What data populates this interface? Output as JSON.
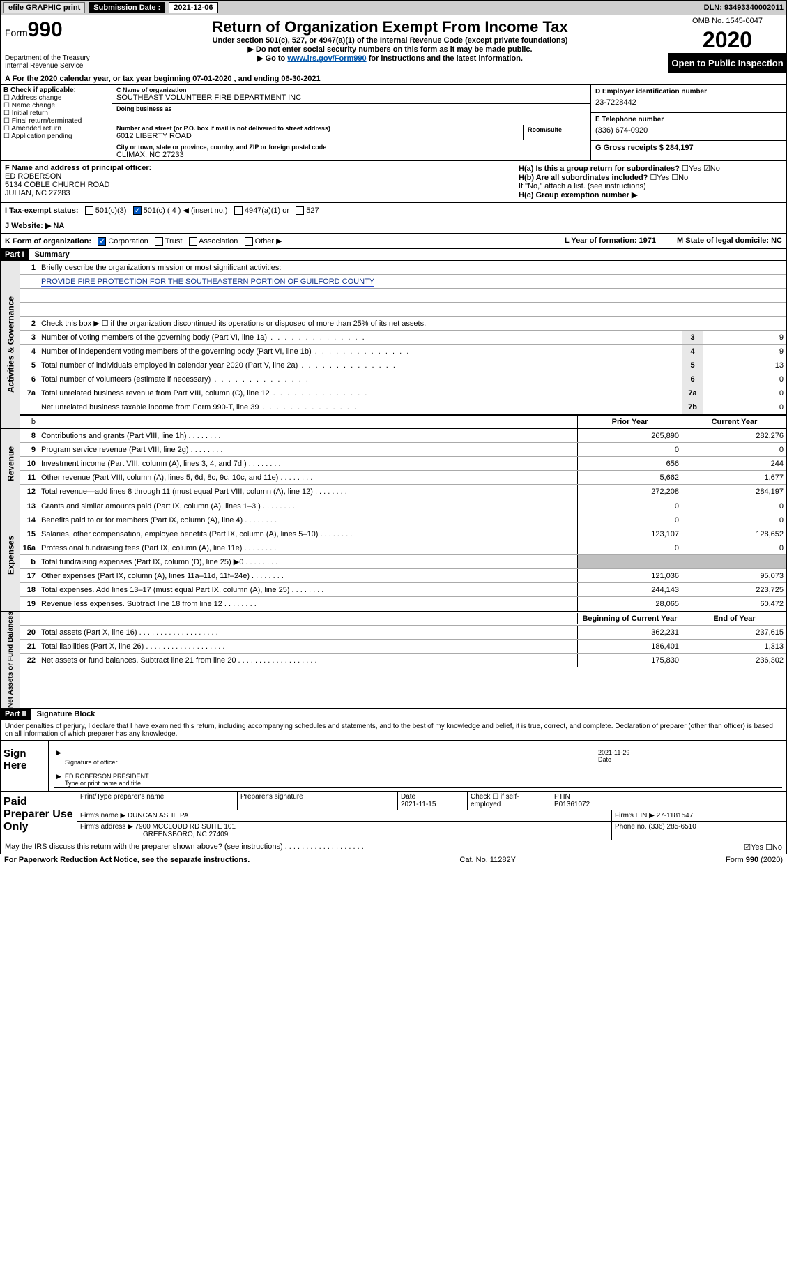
{
  "topbar": {
    "efile": "efile GRAPHIC print",
    "subLabel": "Submission Date :",
    "subDate": "2021-12-06",
    "dln": "DLN: 93493340002011"
  },
  "header": {
    "formWord": "Form",
    "form990": "990",
    "dept": "Department of the Treasury\nInternal Revenue Service",
    "title": "Return of Organization Exempt From Income Tax",
    "sub1": "Under section 501(c), 527, or 4947(a)(1) of the Internal Revenue Code (except private foundations)",
    "sub2": "▶ Do not enter social security numbers on this form as it may be made public.",
    "sub3a": "▶ Go to ",
    "sub3link": "www.irs.gov/Form990",
    "sub3b": " for instructions and the latest information.",
    "omb": "OMB No. 1545-0047",
    "year": "2020",
    "open": "Open to Public Inspection"
  },
  "rowA": "A For the 2020 calendar year, or tax year beginning 07-01-2020    , and ending 06-30-2021",
  "colB": {
    "h": "B Check if applicable:",
    "items": [
      "Address change",
      "Name change",
      "Initial return",
      "Final return/terminated",
      "Amended return",
      "Application pending"
    ]
  },
  "colC": {
    "nameLbl": "C Name of organization",
    "name": "SOUTHEAST VOLUNTEER FIRE DEPARTMENT INC",
    "dbaLbl": "Doing business as",
    "streetLbl": "Number and street (or P.O. box if mail is not delivered to street address)",
    "street": "6012 LIBERTY ROAD",
    "roomLbl": "Room/suite",
    "cityLbl": "City or town, state or province, country, and ZIP or foreign postal code",
    "city": "CLIMAX, NC  27233"
  },
  "colD": {
    "einLbl": "D Employer identification number",
    "ein": "23-7228442",
    "telLbl": "E Telephone number",
    "tel": "(336) 674-0920",
    "grossLbl": "G Gross receipts $ ",
    "gross": "284,197"
  },
  "rowF": {
    "lbl": "F Name and address of principal officer:",
    "name": "ED ROBERSON",
    "addr1": "5134 COBLE CHURCH ROAD",
    "addr2": "JULIAN, NC  27283"
  },
  "rowH": {
    "a": "H(a) Is this a group return for subordinates?",
    "b": "H(b) Are all subordinates included?",
    "bNote": "If \"No,\" attach a list. (see instructions)",
    "c": "H(c) Group exemption number ▶"
  },
  "rowI": {
    "lbl": "I   Tax-exempt status:",
    "o1": "501(c)(3)",
    "o2": "501(c) ( 4 ) ◀ (insert no.)",
    "o3": "4947(a)(1) or",
    "o4": "527"
  },
  "rowJ": "J   Website: ▶ NA",
  "rowK": {
    "lbl": "K Form of organization:",
    "o1": "Corporation",
    "o2": "Trust",
    "o3": "Association",
    "o4": "Other ▶",
    "year": "L Year of formation: 1971",
    "state": "M State of legal domicile: NC"
  },
  "partI": {
    "hdr": "Part I",
    "title": "Summary"
  },
  "activities": {
    "label": "Activities & Governance",
    "l1": "Briefly describe the organization's mission or most significant activities:",
    "l1v": "PROVIDE FIRE PROTECTION FOR THE SOUTHEASTERN PORTION OF GUILFORD COUNTY",
    "l2": "Check this box ▶ ☐  if the organization discontinued its operations or disposed of more than 25% of its net assets.",
    "rows": [
      {
        "n": "3",
        "d": "Number of voting members of the governing body (Part VI, line 1a)",
        "b": "3",
        "v": "9"
      },
      {
        "n": "4",
        "d": "Number of independent voting members of the governing body (Part VI, line 1b)",
        "b": "4",
        "v": "9"
      },
      {
        "n": "5",
        "d": "Total number of individuals employed in calendar year 2020 (Part V, line 2a)",
        "b": "5",
        "v": "13"
      },
      {
        "n": "6",
        "d": "Total number of volunteers (estimate if necessary)",
        "b": "6",
        "v": "0"
      },
      {
        "n": "7a",
        "d": "Total unrelated business revenue from Part VIII, column (C), line 12",
        "b": "7a",
        "v": "0"
      },
      {
        "n": "",
        "d": "Net unrelated business taxable income from Form 990-T, line 39",
        "b": "7b",
        "v": "0"
      }
    ]
  },
  "revenue": {
    "label": "Revenue",
    "hdr1": "Prior Year",
    "hdr2": "Current Year",
    "rows": [
      {
        "n": "8",
        "d": "Contributions and grants (Part VIII, line 1h)",
        "p": "265,890",
        "c": "282,276"
      },
      {
        "n": "9",
        "d": "Program service revenue (Part VIII, line 2g)",
        "p": "0",
        "c": "0"
      },
      {
        "n": "10",
        "d": "Investment income (Part VIII, column (A), lines 3, 4, and 7d )",
        "p": "656",
        "c": "244"
      },
      {
        "n": "11",
        "d": "Other revenue (Part VIII, column (A), lines 5, 6d, 8c, 9c, 10c, and 11e)",
        "p": "5,662",
        "c": "1,677"
      },
      {
        "n": "12",
        "d": "Total revenue—add lines 8 through 11 (must equal Part VIII, column (A), line 12)",
        "p": "272,208",
        "c": "284,197"
      }
    ]
  },
  "expenses": {
    "label": "Expenses",
    "rows": [
      {
        "n": "13",
        "d": "Grants and similar amounts paid (Part IX, column (A), lines 1–3 )",
        "p": "0",
        "c": "0"
      },
      {
        "n": "14",
        "d": "Benefits paid to or for members (Part IX, column (A), line 4)",
        "p": "0",
        "c": "0"
      },
      {
        "n": "15",
        "d": "Salaries, other compensation, employee benefits (Part IX, column (A), lines 5–10)",
        "p": "123,107",
        "c": "128,652"
      },
      {
        "n": "16a",
        "d": "Professional fundraising fees (Part IX, column (A), line 11e)",
        "p": "0",
        "c": "0"
      },
      {
        "n": "b",
        "d": "Total fundraising expenses (Part IX, column (D), line 25) ▶0",
        "p": "",
        "c": "",
        "shade": true
      },
      {
        "n": "17",
        "d": "Other expenses (Part IX, column (A), lines 11a–11d, 11f–24e)",
        "p": "121,036",
        "c": "95,073"
      },
      {
        "n": "18",
        "d": "Total expenses. Add lines 13–17 (must equal Part IX, column (A), line 25)",
        "p": "244,143",
        "c": "223,725"
      },
      {
        "n": "19",
        "d": "Revenue less expenses. Subtract line 18 from line 12",
        "p": "28,065",
        "c": "60,472"
      }
    ]
  },
  "net": {
    "label": "Net Assets or Fund Balances",
    "hdr1": "Beginning of Current Year",
    "hdr2": "End of Year",
    "rows": [
      {
        "n": "20",
        "d": "Total assets (Part X, line 16)",
        "p": "362,231",
        "c": "237,615"
      },
      {
        "n": "21",
        "d": "Total liabilities (Part X, line 26)",
        "p": "186,401",
        "c": "1,313"
      },
      {
        "n": "22",
        "d": "Net assets or fund balances. Subtract line 21 from line 20",
        "p": "175,830",
        "c": "236,302"
      }
    ]
  },
  "partII": {
    "hdr": "Part II",
    "title": "Signature Block",
    "decl": "Under penalties of perjury, I declare that I have examined this return, including accompanying schedules and statements, and to the best of my knowledge and belief, it is true, correct, and complete. Declaration of preparer (other than officer) is based on all information of which preparer has any knowledge."
  },
  "sign": {
    "left": "Sign Here",
    "sigLbl": "Signature of officer",
    "date": "2021-11-29",
    "dateLbl": "Date",
    "name": "ED ROBERSON  PRESIDENT",
    "nameLbl": "Type or print name and title"
  },
  "prep": {
    "left": "Paid Preparer Use Only",
    "h1": "Print/Type preparer's name",
    "h2": "Preparer's signature",
    "h3": "Date",
    "h3v": "2021-11-15",
    "h4": "Check ☐ if self-employed",
    "h5": "PTIN",
    "h5v": "P01361072",
    "firmLbl": "Firm's name    ▶",
    "firm": "DUNCAN ASHE PA",
    "einLbl": "Firm's EIN ▶",
    "ein": "27-1181547",
    "addrLbl": "Firm's address ▶",
    "addr1": "7900 MCCLOUD RD SUITE 101",
    "addr2": "GREENSBORO, NC  27409",
    "phoneLbl": "Phone no.",
    "phone": "(336) 285-6510"
  },
  "mayIrs": {
    "q": "May the IRS discuss this return with the preparer shown above? (see instructions)",
    "yn": "☑Yes  ☐No"
  },
  "footer": {
    "l": "For Paperwork Reduction Act Notice, see the separate instructions.",
    "c": "Cat. No. 11282Y",
    "r": "Form 990 (2020)"
  }
}
